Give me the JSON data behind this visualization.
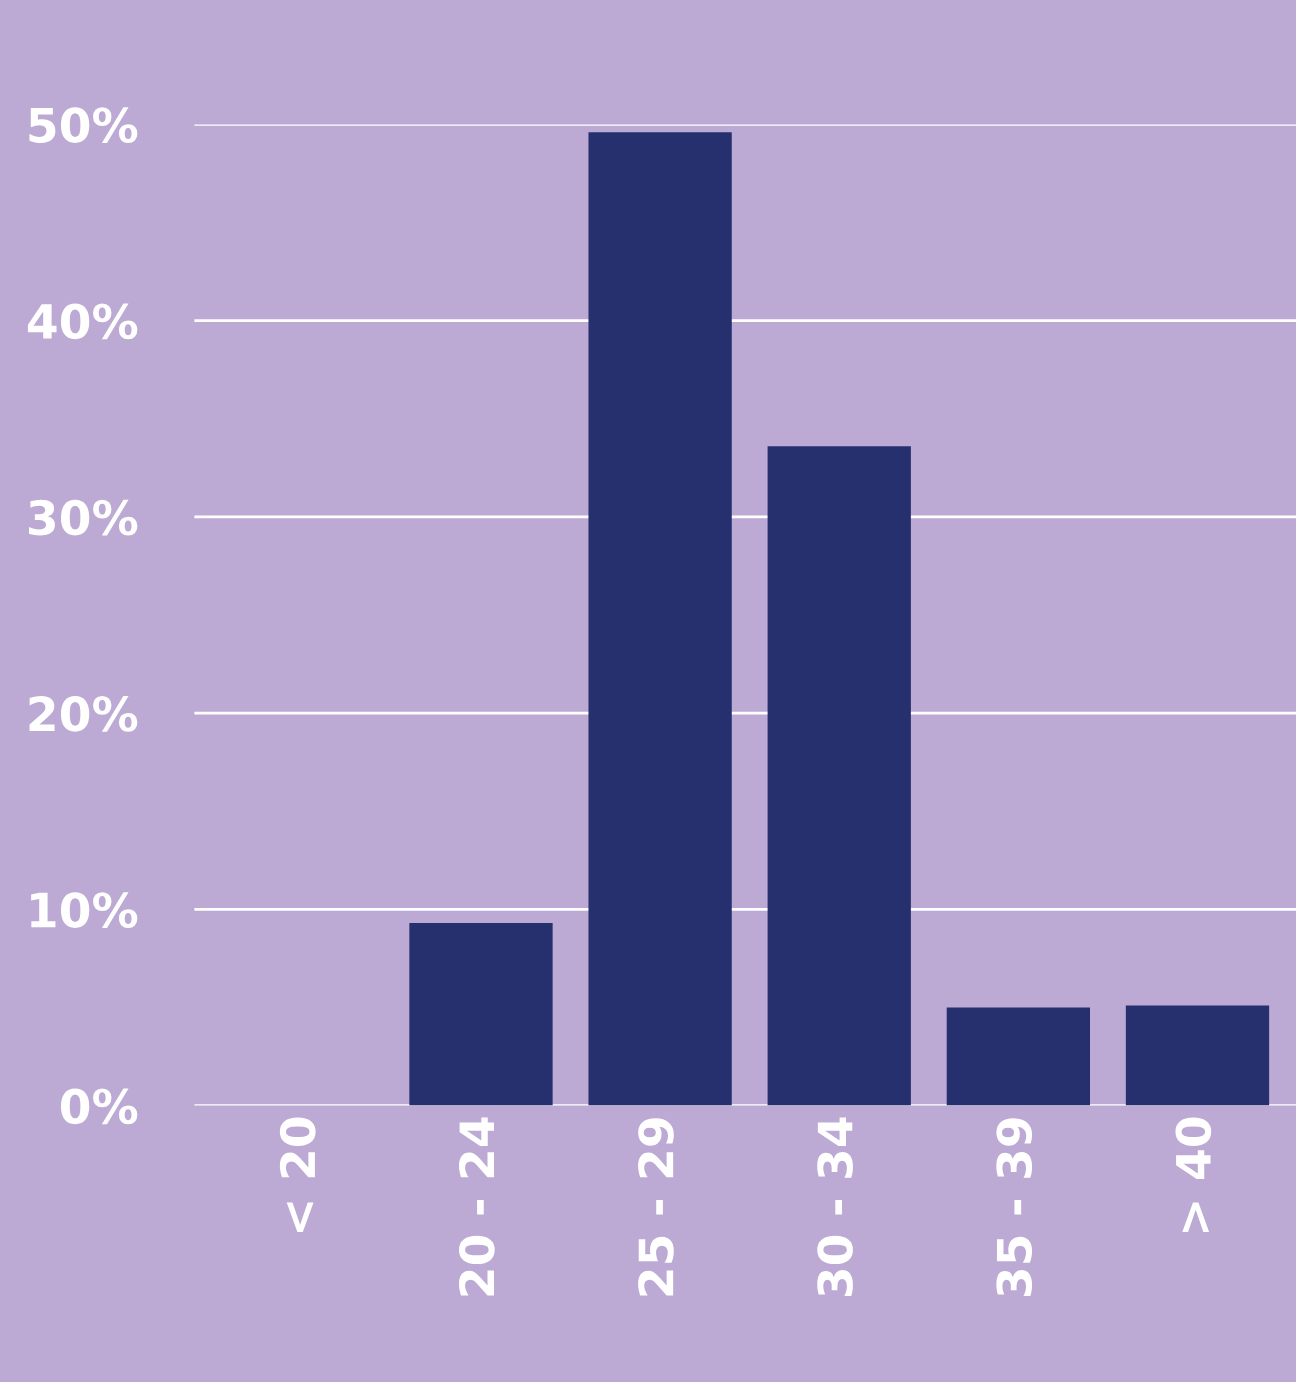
{
  "chart_data": {
    "type": "bar",
    "categories": [
      "< 20",
      "20 - 24",
      "25 - 29",
      "30 - 34",
      "35 - 39",
      "> 40"
    ],
    "values": [
      0,
      9.3,
      49.6,
      33.6,
      5.0,
      5.1
    ],
    "color": "#27306e",
    "ylim": [
      0,
      50
    ],
    "yticks": [
      {
        "value": 0,
        "label": "0%"
      },
      {
        "value": 10,
        "label": "10%"
      },
      {
        "value": 20,
        "label": "20%"
      },
      {
        "value": 30,
        "label": "30%"
      },
      {
        "value": 40,
        "label": "40%"
      },
      {
        "value": 50,
        "label": "50%"
      }
    ],
    "grid": "y",
    "legend": false
  }
}
